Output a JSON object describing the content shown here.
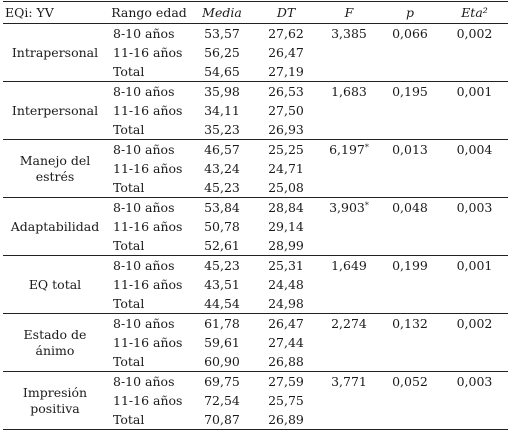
{
  "headers": [
    "EQi: YV",
    "Rango edad",
    "Media",
    "DT",
    "F",
    "p",
    "Eta²"
  ],
  "groups": [
    {
      "variable": "Intrapersonal",
      "rows": [
        {
          "grupo": "8-10 años",
          "media": "53,57",
          "dt": "27,62"
        },
        {
          "grupo": "11-16 años",
          "media": "56,25",
          "dt": "26,47"
        },
        {
          "grupo": "Total",
          "media": "54,65",
          "dt": "27,19"
        }
      ],
      "f": "3,385",
      "f_mark": "",
      "p": "0,066",
      "eta": "0,002"
    },
    {
      "variable": "Interpersonal",
      "rows": [
        {
          "grupo": "8-10 años",
          "media": "35,98",
          "dt": "26,53"
        },
        {
          "grupo": "11-16 años",
          "media": "34,11",
          "dt": "27,50"
        },
        {
          "grupo": "Total",
          "media": "35,23",
          "dt": "26,93"
        }
      ],
      "f": "1,683",
      "f_mark": "",
      "p": "0,195",
      "eta": "0,001"
    },
    {
      "variable": "Manejo del estrés",
      "rows": [
        {
          "grupo": "8-10 años",
          "media": "46,57",
          "dt": "25,25"
        },
        {
          "grupo": "11-16 años",
          "media": "43,24",
          "dt": "24,71"
        },
        {
          "grupo": "Total",
          "media": "45,23",
          "dt": "25,08"
        }
      ],
      "f": "6,197",
      "f_mark": "*",
      "p": "0,013",
      "eta": "0,004"
    },
    {
      "variable": "Adaptabilidad",
      "rows": [
        {
          "grupo": "8-10 años",
          "media": "53,84",
          "dt": "28,84"
        },
        {
          "grupo": "11-16 años",
          "media": "50,78",
          "dt": "29,14"
        },
        {
          "grupo": "Total",
          "media": "52,61",
          "dt": "28,99"
        }
      ],
      "f": "3,903",
      "f_mark": "*",
      "p": "0,048",
      "eta": "0,003"
    },
    {
      "variable": "EQ total",
      "rows": [
        {
          "grupo": "8-10 años",
          "media": "45,23",
          "dt": "25,31"
        },
        {
          "grupo": "11-16 años",
          "media": "43,51",
          "dt": "24,48"
        },
        {
          "grupo": "Total",
          "media": "44,54",
          "dt": "24,98"
        }
      ],
      "f": "1,649",
      "f_mark": "",
      "p": "0,199",
      "eta": "0,001"
    },
    {
      "variable": "Estado de ánimo",
      "rows": [
        {
          "grupo": "8-10 años",
          "media": "61,78",
          "dt": "26,47"
        },
        {
          "grupo": "11-16 años",
          "media": "59,61",
          "dt": "27,44"
        },
        {
          "grupo": "Total",
          "media": "60,90",
          "dt": "26,88"
        }
      ],
      "f": "2,274",
      "f_mark": "",
      "p": "0,132",
      "eta": "0,002"
    },
    {
      "variable": "Impresión positiva",
      "rows": [
        {
          "grupo": "8-10 años",
          "media": "69,75",
          "dt": "27,59"
        },
        {
          "grupo": "11-16 años",
          "media": "72,54",
          "dt": "25,75"
        },
        {
          "grupo": "Total",
          "media": "70,87",
          "dt": "26,89"
        }
      ],
      "f": "3,771",
      "f_mark": "",
      "p": "0,052",
      "eta": "0,003"
    }
  ]
}
